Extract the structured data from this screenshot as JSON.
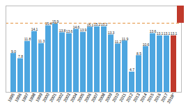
{
  "chart_data": {
    "type": "bar",
    "categories": [
      "1995",
      "1996",
      "1997",
      "1998",
      "1999",
      "2000",
      "2001",
      "2002",
      "2003",
      "2004",
      "2005",
      "2006",
      "2007",
      "2008",
      "2009",
      "2010",
      "2011",
      "2012",
      "2013",
      "2014",
      "2015",
      "2016",
      "2017",
      "2018*"
    ],
    "values": [
      9.0,
      7.8,
      11.8,
      14.1,
      11.3,
      15.4,
      15.9,
      13.8,
      13.6,
      14.6,
      13.9,
      15.1,
      15.2,
      15.2,
      13.3,
      11.2,
      11.9,
      4.7,
      8.5,
      10.6,
      13.6,
      13.1,
      13.1,
      13.1
    ],
    "value_labels": [
      "9.0",
      "7.8",
      "11.8",
      "14.1",
      "11.3",
      "15.4",
      "15.9",
      "13.8",
      "13.6",
      "14.6",
      "13.9",
      "15.1",
      "15.2",
      "15.2",
      "13.3",
      "11.2",
      "11.9",
      "4.7",
      "8.5",
      "10.6",
      "13.6",
      "13.1",
      "13.1",
      "13.1"
    ],
    "colors": [
      "#4da6e0",
      "#4da6e0",
      "#4da6e0",
      "#4da6e0",
      "#4da6e0",
      "#4da6e0",
      "#4da6e0",
      "#4da6e0",
      "#4da6e0",
      "#4da6e0",
      "#4da6e0",
      "#4da6e0",
      "#4da6e0",
      "#4da6e0",
      "#4da6e0",
      "#4da6e0",
      "#4da6e0",
      "#4da6e0",
      "#4da6e0",
      "#4da6e0",
      "#4da6e0",
      "#4da6e0",
      "#4da6e0",
      "#c0392b"
    ],
    "hline": {
      "y": 16.0,
      "color": "#e08020",
      "line_style": "dashed"
    },
    "ylim": [
      0,
      20
    ],
    "yticks": [],
    "grid": false,
    "data_labels": true,
    "tick_labels": "x"
  }
}
